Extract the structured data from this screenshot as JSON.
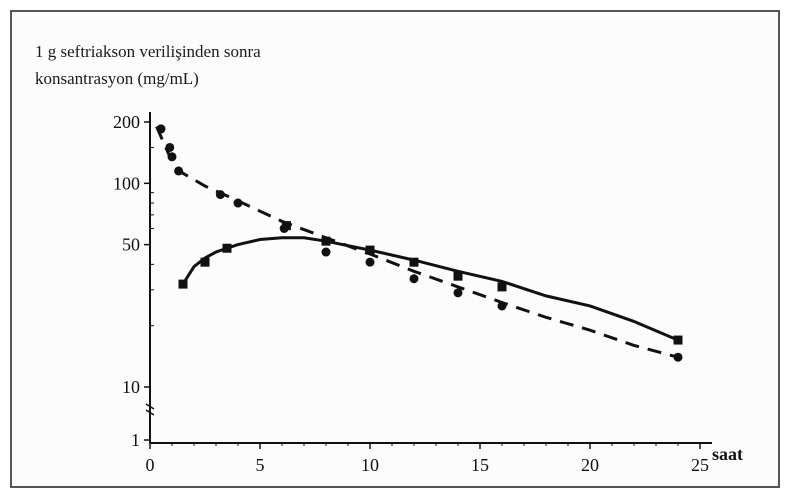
{
  "chart_data": {
    "type": "line",
    "title_lines": [
      "1 g seftriakson verilişinden sonra",
      "konsantrasyon (mg/mL)"
    ],
    "xlabel": "saat",
    "ylabel": "",
    "xlim": [
      0,
      25
    ],
    "ylim": [
      1,
      200
    ],
    "yscale": "mixed-log",
    "x_ticks": [
      "0",
      "5",
      "10",
      "15",
      "20",
      "25"
    ],
    "y_ticks": [
      "200",
      "100",
      "50",
      "10",
      "1"
    ],
    "grid": false,
    "legend": "none",
    "series": [
      {
        "style": "dashed",
        "marker": "circle",
        "color": "#111111",
        "points": [
          [
            0.5,
            185
          ],
          [
            0.9,
            150
          ],
          [
            1.0,
            135
          ],
          [
            1.3,
            115
          ],
          [
            3.2,
            88
          ],
          [
            4.0,
            80
          ],
          [
            6.1,
            60
          ],
          [
            8.0,
            46
          ],
          [
            10.0,
            41
          ],
          [
            12.0,
            34
          ],
          [
            14.0,
            29
          ],
          [
            16.0,
            25
          ],
          [
            24.0,
            14
          ]
        ],
        "fit": [
          [
            0.3,
            190
          ],
          [
            0.6,
            160
          ],
          [
            1.0,
            128
          ],
          [
            1.5,
            112
          ],
          [
            2.5,
            97
          ],
          [
            4.0,
            82
          ],
          [
            6.0,
            65
          ],
          [
            8.0,
            54
          ],
          [
            10.0,
            45
          ],
          [
            12.0,
            37
          ],
          [
            14.0,
            31
          ],
          [
            16.0,
            26
          ],
          [
            18.0,
            22
          ],
          [
            20.0,
            19
          ],
          [
            22.0,
            16
          ],
          [
            24.0,
            14
          ]
        ]
      },
      {
        "style": "solid",
        "marker": "square",
        "color": "#111111",
        "points": [
          [
            1.5,
            32
          ],
          [
            2.5,
            41
          ],
          [
            3.5,
            48
          ],
          [
            6.2,
            62
          ],
          [
            8.0,
            52
          ],
          [
            10.0,
            47
          ],
          [
            12.0,
            41
          ],
          [
            14.0,
            35
          ],
          [
            16.0,
            31
          ],
          [
            24.0,
            17
          ]
        ],
        "fit": [
          [
            1.5,
            32
          ],
          [
            2.0,
            39
          ],
          [
            2.5,
            43
          ],
          [
            3.0,
            46
          ],
          [
            4.0,
            50
          ],
          [
            5.0,
            53
          ],
          [
            6.0,
            54
          ],
          [
            7.0,
            54
          ],
          [
            8.0,
            52
          ],
          [
            10.0,
            47
          ],
          [
            12.0,
            42
          ],
          [
            14.0,
            37
          ],
          [
            16.0,
            33
          ],
          [
            18.0,
            28
          ],
          [
            20.0,
            25
          ],
          [
            22.0,
            21
          ],
          [
            24.0,
            17
          ]
        ]
      }
    ]
  }
}
